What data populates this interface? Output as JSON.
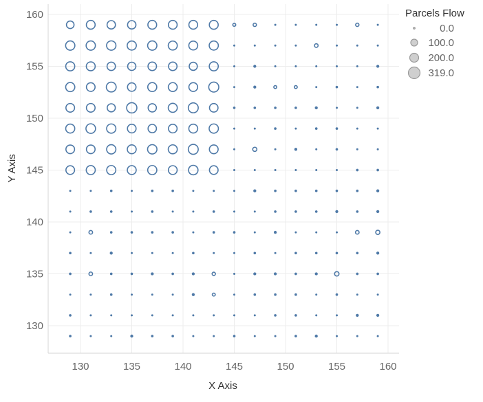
{
  "chart_data": {
    "type": "scatter",
    "title": "",
    "xlabel": "X Axis",
    "ylabel": "Y Axis",
    "xlim": [
      126.5,
      161.0
    ],
    "ylim": [
      127.0,
      161.0
    ],
    "x_ticks": [
      130,
      135,
      140,
      145,
      150,
      155,
      160
    ],
    "y_ticks": [
      130,
      135,
      140,
      145,
      150,
      155,
      160
    ],
    "grid": true,
    "size_legend": {
      "title": "Parcels Flow",
      "entries": [
        "0.0",
        "100.0",
        "200.0",
        "319.0"
      ],
      "values": [
        0,
        100,
        200,
        319
      ],
      "placement": "top-right"
    },
    "marker_style": "hollow circle",
    "series": [
      {
        "size_field": "Parcels Flow",
        "x_values": [
          129,
          131,
          133,
          135,
          137,
          139,
          141,
          143,
          145,
          147,
          149,
          151,
          153,
          155,
          157,
          159
        ],
        "y_values": [
          159,
          157,
          155,
          153,
          151,
          149,
          147,
          145,
          143,
          141,
          139,
          137,
          135,
          133,
          131,
          129
        ],
        "grid_values": [
          [
            130,
            175,
            160,
            160,
            175,
            175,
            175,
            180,
            20,
            25,
            5,
            5,
            5,
            5,
            25,
            5
          ],
          [
            195,
            195,
            200,
            190,
            195,
            185,
            180,
            190,
            5,
            5,
            5,
            5,
            30,
            5,
            5,
            5
          ],
          [
            185,
            180,
            160,
            155,
            165,
            165,
            150,
            185,
            5,
            15,
            5,
            5,
            5,
            5,
            5,
            15
          ],
          [
            190,
            170,
            220,
            165,
            185,
            180,
            175,
            230,
            5,
            15,
            20,
            20,
            5,
            10,
            5,
            10
          ],
          [
            170,
            170,
            150,
            240,
            155,
            185,
            225,
            165,
            10,
            10,
            10,
            10,
            15,
            5,
            5,
            15
          ],
          [
            185,
            210,
            195,
            170,
            160,
            170,
            180,
            195,
            5,
            5,
            10,
            5,
            10,
            10,
            5,
            5
          ],
          [
            170,
            170,
            195,
            180,
            200,
            185,
            225,
            175,
            5,
            40,
            5,
            15,
            5,
            10,
            5,
            5
          ],
          [
            170,
            185,
            190,
            180,
            190,
            175,
            205,
            170,
            5,
            5,
            5,
            5,
            5,
            5,
            10,
            10
          ],
          [
            5,
            5,
            10,
            5,
            10,
            10,
            5,
            5,
            5,
            15,
            10,
            10,
            10,
            10,
            10,
            15
          ],
          [
            5,
            10,
            10,
            5,
            10,
            5,
            5,
            10,
            5,
            5,
            10,
            10,
            10,
            15,
            10,
            15
          ],
          [
            5,
            30,
            10,
            10,
            10,
            10,
            5,
            10,
            10,
            5,
            15,
            5,
            5,
            5,
            30,
            40
          ],
          [
            10,
            5,
            15,
            5,
            5,
            5,
            10,
            5,
            5,
            10,
            5,
            10,
            10,
            10,
            10,
            15
          ],
          [
            10,
            30,
            10,
            10,
            15,
            10,
            15,
            25,
            5,
            15,
            15,
            10,
            15,
            45,
            10,
            10
          ],
          [
            5,
            5,
            10,
            5,
            5,
            5,
            15,
            20,
            5,
            10,
            10,
            10,
            5,
            10,
            5,
            5
          ],
          [
            10,
            5,
            5,
            5,
            5,
            5,
            5,
            5,
            5,
            5,
            10,
            10,
            5,
            5,
            15,
            15
          ],
          [
            10,
            5,
            5,
            15,
            10,
            10,
            5,
            5,
            10,
            5,
            5,
            10,
            15,
            5,
            5,
            5
          ]
        ]
      }
    ]
  }
}
